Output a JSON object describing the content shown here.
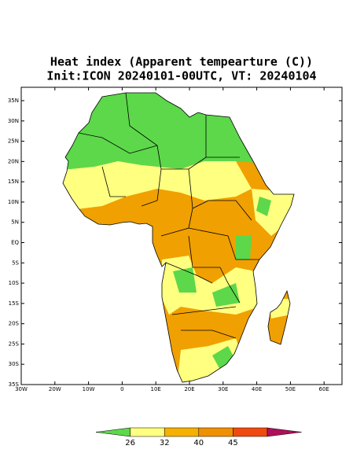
{
  "map": {
    "title": "Heat index (Apparent tempearture (C))",
    "subtitle": "Init:ICON 20240101-00UTC, VT: 20240104",
    "lat_ticks": [
      {
        "value": 35,
        "label": "35N"
      },
      {
        "value": 30,
        "label": "30N"
      },
      {
        "value": 25,
        "label": "25N"
      },
      {
        "value": 20,
        "label": "20N"
      },
      {
        "value": 15,
        "label": "15N"
      },
      {
        "value": 10,
        "label": "10N"
      },
      {
        "value": 5,
        "label": "5N"
      },
      {
        "value": 0,
        "label": "EQ"
      },
      {
        "value": -5,
        "label": "5S"
      },
      {
        "value": -10,
        "label": "10S"
      },
      {
        "value": -15,
        "label": "15S"
      },
      {
        "value": -20,
        "label": "20S"
      },
      {
        "value": -25,
        "label": "25S"
      },
      {
        "value": -30,
        "label": "30S"
      },
      {
        "value": -35,
        "label": "35S"
      }
    ],
    "lon_ticks": [
      {
        "value": -30,
        "label": "30W"
      },
      {
        "value": -20,
        "label": "20W"
      },
      {
        "value": -10,
        "label": "10W"
      },
      0,
      {
        "value": 10,
        "label": "10E"
      },
      {
        "value": 20,
        "label": "20E"
      },
      {
        "value": 30,
        "label": "30E"
      },
      {
        "value": 40,
        "label": "40E"
      },
      {
        "value": 50,
        "label": "50E"
      },
      {
        "value": 60,
        "label": "60E"
      }
    ],
    "colorbar": {
      "levels": [
        26,
        32,
        40,
        45
      ],
      "colors": [
        "#5cd84a",
        "#ffff80",
        "#f5b000",
        "#f09000",
        "#f04a10",
        "#b0105a"
      ]
    }
  }
}
